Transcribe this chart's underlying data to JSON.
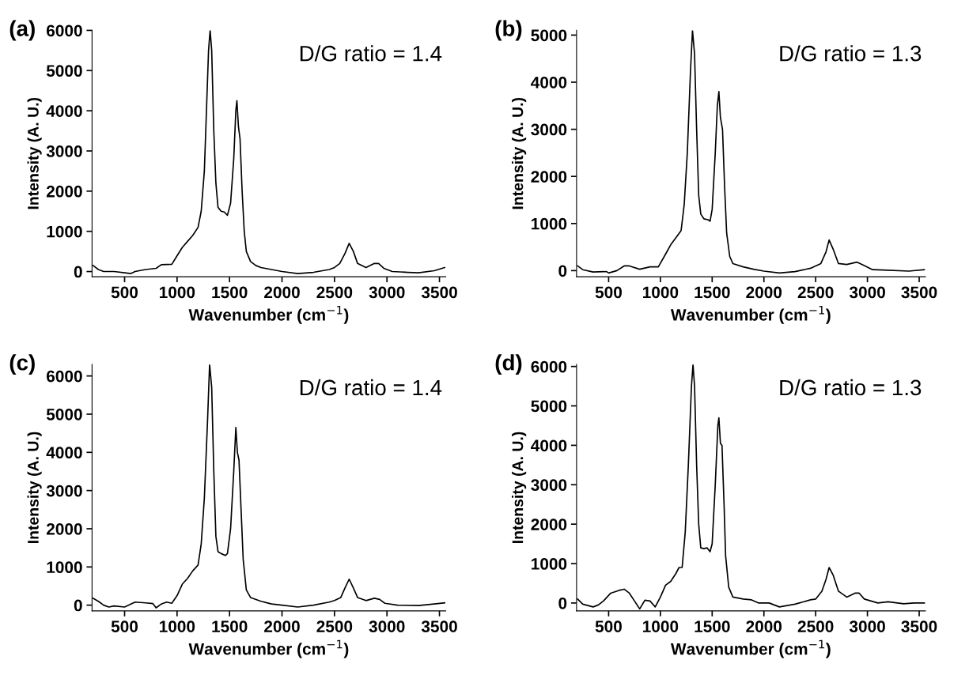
{
  "chart_data": [
    {
      "type": "line",
      "title": "(a)",
      "xlabel": "Wavenumber (cm$^{−1}$)",
      "ylabel": "Intensity (A. U.)",
      "annotations": [
        "D/G ratio = 1.4"
      ],
      "xlim": [
        190,
        3560
      ],
      "ylim": [
        -130,
        6000
      ],
      "xticks": [
        500,
        1000,
        1500,
        2000,
        2500,
        3000,
        3500
      ],
      "yticks": [
        0,
        1000,
        2000,
        3000,
        4000,
        5000,
        6000
      ],
      "grid": false,
      "legend": false,
      "series": [
        {
          "color": "#000000",
          "x": [
            200,
            250,
            300,
            400,
            500,
            560,
            600,
            700,
            800,
            850,
            950,
            990,
            1050,
            1100,
            1150,
            1200,
            1230,
            1260,
            1280,
            1300,
            1315,
            1330,
            1350,
            1370,
            1390,
            1420,
            1450,
            1480,
            1510,
            1540,
            1560,
            1570,
            1585,
            1600,
            1620,
            1640,
            1660,
            1700,
            1750,
            1800,
            1900,
            2000,
            2150,
            2300,
            2450,
            2500,
            2550,
            2600,
            2640,
            2680,
            2720,
            2800,
            2880,
            2920,
            2970,
            3050,
            3200,
            3300,
            3450,
            3550
          ],
          "values": [
            150,
            50,
            0,
            0,
            -30,
            -50,
            0,
            50,
            80,
            170,
            180,
            350,
            600,
            750,
            900,
            1100,
            1500,
            2500,
            4000,
            5500,
            6000,
            5500,
            3500,
            2200,
            1600,
            1500,
            1480,
            1400,
            1700,
            2800,
            4000,
            4250,
            3600,
            3300,
            2000,
            1000,
            500,
            250,
            150,
            100,
            50,
            0,
            -50,
            -20,
            50,
            100,
            200,
            450,
            700,
            500,
            200,
            100,
            200,
            200,
            80,
            0,
            -20,
            -30,
            20,
            100
          ]
        }
      ]
    },
    {
      "type": "line",
      "title": "(b)",
      "xlabel": "Wavenumber (cm$^{−1}$)",
      "ylabel": "Intensity (A. U.)",
      "annotations": [
        "D/G ratio = 1.3"
      ],
      "xlim": [
        190,
        3560
      ],
      "ylim": [
        -130,
        5100
      ],
      "xticks": [
        500,
        1000,
        1500,
        2000,
        2500,
        3000,
        3500
      ],
      "yticks": [
        0,
        1000,
        2000,
        3000,
        4000,
        5000
      ],
      "grid": false,
      "legend": false,
      "series": [
        {
          "color": "#000000",
          "x": [
            200,
            250,
            350,
            480,
            500,
            580,
            650,
            700,
            800,
            900,
            980,
            1050,
            1100,
            1150,
            1200,
            1230,
            1260,
            1290,
            1310,
            1330,
            1350,
            1370,
            1390,
            1420,
            1460,
            1480,
            1500,
            1530,
            1550,
            1565,
            1580,
            1600,
            1620,
            1640,
            1670,
            1700,
            1800,
            1900,
            2000,
            2150,
            2300,
            2450,
            2500,
            2550,
            2600,
            2630,
            2670,
            2720,
            2800,
            2900,
            2950,
            3050,
            3200,
            3400,
            3550
          ],
          "values": [
            100,
            20,
            -30,
            -20,
            -50,
            0,
            100,
            100,
            30,
            80,
            80,
            350,
            550,
            700,
            850,
            1400,
            2500,
            4200,
            5100,
            4600,
            3000,
            1600,
            1200,
            1100,
            1080,
            1050,
            1300,
            2500,
            3500,
            3800,
            3250,
            3000,
            1800,
            800,
            300,
            150,
            80,
            30,
            -10,
            -50,
            -20,
            50,
            100,
            150,
            400,
            650,
            450,
            150,
            130,
            180,
            130,
            20,
            10,
            -10,
            20
          ]
        }
      ]
    },
    {
      "type": "line",
      "title": "(c)",
      "xlabel": "Wavenumber (cm$^{−1}$)",
      "ylabel": "Intensity (A. U.)",
      "annotations": [
        "D/G ratio = 1.4"
      ],
      "xlim": [
        190,
        3560
      ],
      "ylim": [
        -150,
        6300
      ],
      "xticks": [
        500,
        1000,
        1500,
        2000,
        2500,
        3000,
        3500
      ],
      "yticks": [
        0,
        1000,
        2000,
        3000,
        4000,
        5000,
        6000
      ],
      "grid": false,
      "legend": false,
      "series": [
        {
          "color": "#000000",
          "x": [
            200,
            250,
            300,
            350,
            400,
            500,
            600,
            700,
            770,
            800,
            850,
            900,
            950,
            1000,
            1050,
            1100,
            1150,
            1200,
            1230,
            1260,
            1290,
            1310,
            1330,
            1350,
            1370,
            1390,
            1420,
            1460,
            1480,
            1510,
            1540,
            1560,
            1575,
            1590,
            1610,
            1630,
            1660,
            1700,
            1800,
            1900,
            2000,
            2150,
            2300,
            2450,
            2500,
            2560,
            2600,
            2640,
            2680,
            2720,
            2800,
            2880,
            2930,
            2980,
            3100,
            3300,
            3450,
            3550
          ],
          "values": [
            180,
            100,
            0,
            -50,
            -20,
            -50,
            80,
            60,
            40,
            -70,
            30,
            80,
            50,
            250,
            550,
            700,
            900,
            1050,
            1600,
            2800,
            4800,
            6300,
            5700,
            3500,
            1800,
            1400,
            1350,
            1300,
            1350,
            2000,
            3500,
            4650,
            4000,
            3800,
            2500,
            1200,
            400,
            200,
            100,
            30,
            0,
            -50,
            0,
            80,
            120,
            200,
            450,
            680,
            450,
            200,
            120,
            180,
            150,
            50,
            0,
            -10,
            30,
            60
          ]
        }
      ]
    },
    {
      "type": "line",
      "title": "(d)",
      "xlabel": "Wavenumber (cm$^{−1}$)",
      "ylabel": "Intensity (A. U.)",
      "annotations": [
        "D/G ratio = 1.3"
      ],
      "xlim": [
        190,
        3560
      ],
      "ylim": [
        -200,
        6050
      ],
      "xticks": [
        500,
        1000,
        1500,
        2000,
        2500,
        3000,
        3500
      ],
      "yticks": [
        0,
        1000,
        2000,
        3000,
        4000,
        5000,
        6000
      ],
      "grid": false,
      "legend": false,
      "series": [
        {
          "color": "#000000",
          "x": [
            200,
            250,
            350,
            400,
            450,
            520,
            600,
            650,
            700,
            750,
            800,
            850,
            900,
            950,
            1000,
            1050,
            1100,
            1150,
            1180,
            1210,
            1240,
            1270,
            1300,
            1315,
            1330,
            1350,
            1370,
            1390,
            1420,
            1450,
            1480,
            1500,
            1530,
            1555,
            1565,
            1580,
            1595,
            1615,
            1630,
            1660,
            1700,
            1800,
            1880,
            1950,
            2050,
            2150,
            2300,
            2450,
            2500,
            2560,
            2600,
            2630,
            2670,
            2720,
            2800,
            2880,
            2920,
            2970,
            3100,
            3200,
            3350,
            3450,
            3550
          ],
          "values": [
            100,
            -30,
            -100,
            -50,
            50,
            250,
            320,
            350,
            250,
            50,
            -150,
            70,
            50,
            -100,
            150,
            450,
            550,
            750,
            900,
            900,
            1800,
            3500,
            5500,
            6050,
            5500,
            3500,
            2000,
            1400,
            1380,
            1400,
            1300,
            1500,
            3000,
            4500,
            4700,
            4050,
            4000,
            2500,
            1200,
            400,
            150,
            100,
            80,
            0,
            0,
            -100,
            -30,
            80,
            100,
            300,
            600,
            900,
            700,
            300,
            150,
            250,
            250,
            100,
            0,
            30,
            -20,
            0,
            0
          ]
        }
      ]
    }
  ]
}
